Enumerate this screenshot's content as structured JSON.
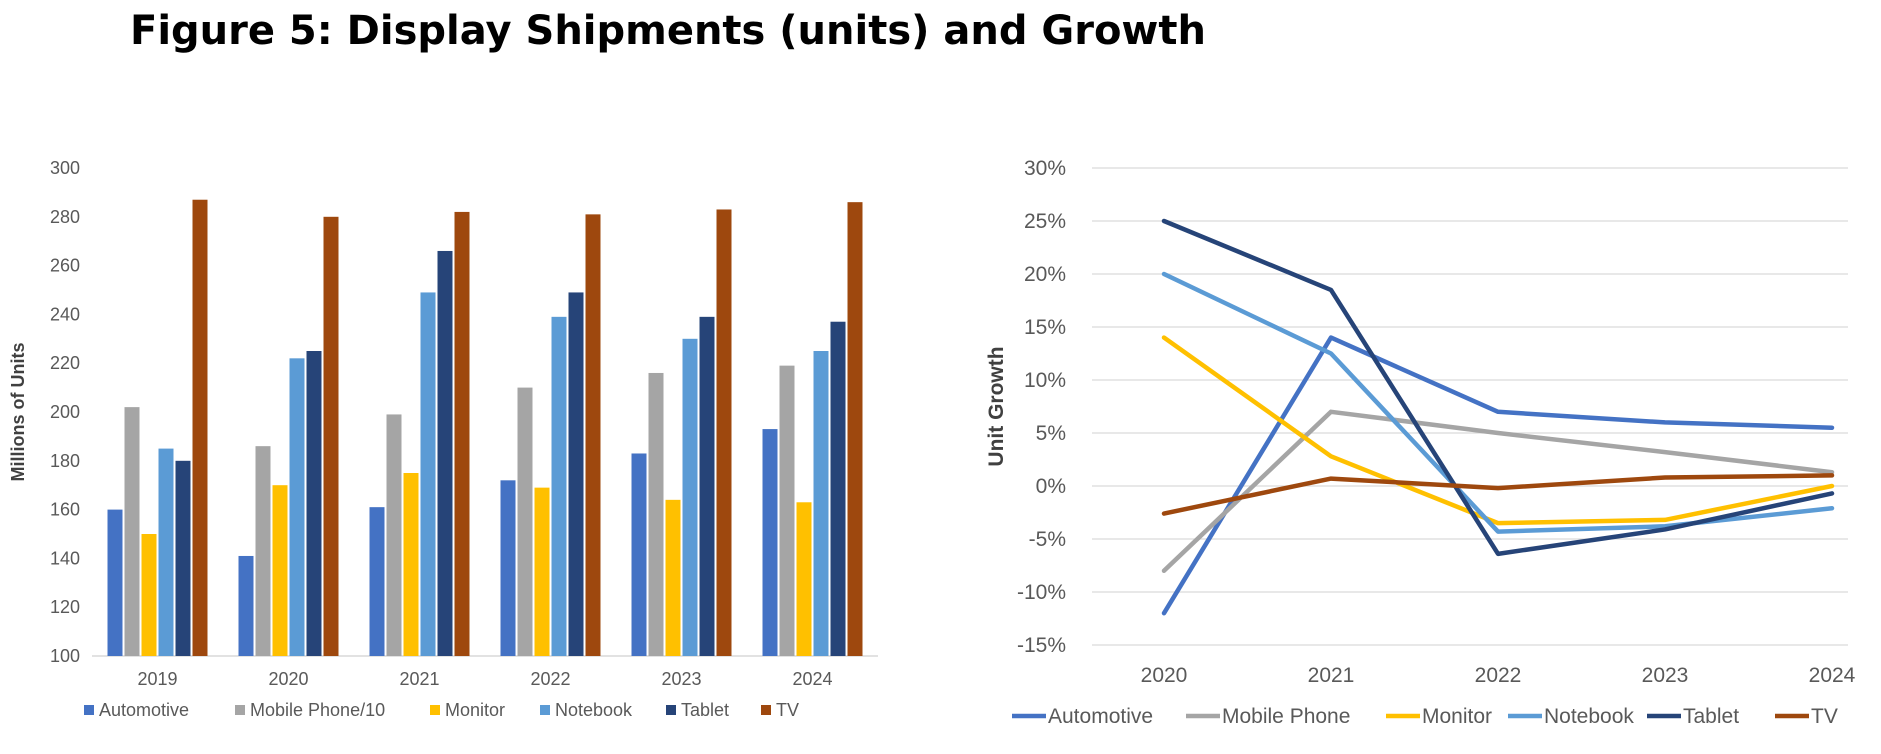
{
  "figure_title": "Figure 5: Display Shipments (units) and Growth",
  "chart_data": [
    {
      "type": "bar",
      "ylabel": "Millions of Units",
      "xlabel": "",
      "ylim": [
        100,
        300
      ],
      "yticks": [
        100,
        120,
        140,
        160,
        180,
        200,
        220,
        240,
        260,
        280,
        300
      ],
      "ytick_labels": [
        "100",
        "120",
        "140",
        "160",
        "180",
        "200",
        "220",
        "240",
        "260",
        "280",
        "300"
      ],
      "grid": false,
      "legend_position": "bottom",
      "categories": [
        "2019",
        "2020",
        "2021",
        "2022",
        "2023",
        "2024"
      ],
      "series": [
        {
          "name": "Automotive",
          "color": "#4472C4",
          "values": [
            160,
            141,
            161,
            172,
            183,
            193
          ]
        },
        {
          "name": "Mobile Phone/10",
          "color": "#A5A5A5",
          "values": [
            202,
            186,
            199,
            210,
            216,
            219
          ]
        },
        {
          "name": "Monitor",
          "color": "#FFC000",
          "values": [
            150,
            170,
            175,
            169,
            164,
            163
          ]
        },
        {
          "name": "Notebook",
          "color": "#5B9BD5",
          "values": [
            185,
            222,
            249,
            239,
            230,
            225
          ]
        },
        {
          "name": "Tablet",
          "color": "#264478",
          "values": [
            180,
            225,
            266,
            249,
            239,
            237
          ]
        },
        {
          "name": "TV",
          "color": "#9E480E",
          "values": [
            287,
            280,
            282,
            281,
            283,
            286
          ]
        }
      ]
    },
    {
      "type": "line",
      "ylabel": "Unit Growth",
      "xlabel": "",
      "ylim": [
        -15,
        30
      ],
      "yticks": [
        -15,
        -10,
        -5,
        0,
        5,
        10,
        15,
        20,
        25,
        30
      ],
      "ytick_labels": [
        "-15%",
        "-10%",
        "-5%",
        "0%",
        "5%",
        "10%",
        "15%",
        "20%",
        "25%",
        "30%"
      ],
      "grid": true,
      "legend_position": "bottom",
      "x": [
        "2020",
        "2021",
        "2022",
        "2023",
        "2024"
      ],
      "series": [
        {
          "name": "Automotive",
          "color": "#4472C4",
          "values": [
            -12,
            14,
            7,
            6,
            5.5
          ]
        },
        {
          "name": "Mobile Phone",
          "color": "#A5A5A5",
          "values": [
            -8,
            7,
            5,
            3.2,
            1.3
          ]
        },
        {
          "name": "Monitor",
          "color": "#FFC000",
          "values": [
            14,
            2.8,
            -3.5,
            -3.2,
            0
          ]
        },
        {
          "name": "Notebook",
          "color": "#5B9BD5",
          "values": [
            20,
            12.5,
            -4.3,
            -3.8,
            -2.1
          ]
        },
        {
          "name": "Tablet",
          "color": "#264478",
          "values": [
            25,
            18.5,
            -6.4,
            -4.1,
            -0.7
          ]
        },
        {
          "name": "TV",
          "color": "#9E480E",
          "values": [
            -2.6,
            0.7,
            -0.2,
            0.8,
            1
          ]
        }
      ]
    }
  ]
}
